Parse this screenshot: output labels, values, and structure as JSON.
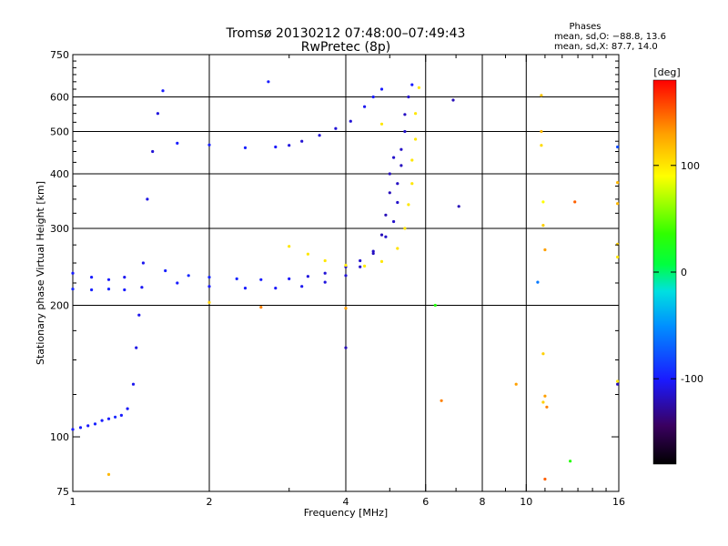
{
  "chart_data": {
    "type": "scatter",
    "title": "Tromsø 20130212 07:48:00–07:49:43",
    "subtitle": "RwPretec (8p)",
    "stats_title": "Phases",
    "stats_o": "mean, sd,O: −88.8, 13.6",
    "stats_x": "mean, sd,X:  87.7, 14.0",
    "xlabel": "Frequency [MHz]",
    "ylabel": "Stationary phase Virtual Height [km]",
    "x_scale": "log",
    "y_scale": "log",
    "xlim": [
      1,
      16
    ],
    "ylim": [
      75,
      750
    ],
    "x_major_ticks": [
      1,
      2,
      4,
      6,
      8,
      10,
      16
    ],
    "x_gridlines": [
      2,
      4,
      6,
      8,
      10
    ],
    "x_minor_ticks": [
      3,
      5,
      7,
      9,
      11,
      12,
      13,
      14,
      15
    ],
    "y_major_ticks": [
      75,
      100,
      200,
      300,
      400,
      500,
      600,
      750
    ],
    "y_gridlines": [
      200,
      300,
      400,
      500,
      600
    ],
    "y_minor_ticks": [
      125,
      150,
      175,
      225,
      250,
      275,
      325,
      350,
      375,
      425,
      450,
      475,
      525,
      550,
      575,
      625,
      650,
      675,
      700,
      725
    ],
    "grid": true,
    "colorbar": {
      "label": "[deg]",
      "range": [
        -180,
        180
      ],
      "ticks": [
        100,
        0,
        -100
      ],
      "placement": "right"
    },
    "series": [
      {
        "points": [
          [
            1.0,
            104,
            -100
          ],
          [
            1.04,
            105,
            -100
          ],
          [
            1.08,
            106,
            -102
          ],
          [
            1.12,
            107,
            -98
          ],
          [
            1.16,
            109,
            -100
          ],
          [
            1.2,
            110,
            -100
          ],
          [
            1.24,
            111,
            -96
          ],
          [
            1.28,
            112,
            -100
          ],
          [
            1.32,
            116,
            -103
          ],
          [
            1.36,
            132,
            -105
          ],
          [
            1.38,
            160,
            -108
          ],
          [
            1.4,
            190,
            -106
          ],
          [
            1.42,
            220,
            -104
          ],
          [
            1.43,
            250,
            -105
          ],
          [
            1.46,
            350,
            -108
          ],
          [
            1.5,
            450,
            -112
          ],
          [
            1.54,
            550,
            -110
          ],
          [
            1.58,
            620,
            -100
          ],
          [
            1.0,
            237,
            -100
          ],
          [
            1.1,
            232,
            -100
          ],
          [
            1.2,
            229,
            -100
          ],
          [
            1.3,
            232,
            -105
          ],
          [
            1.0,
            218,
            -95
          ],
          [
            1.1,
            217,
            -98
          ],
          [
            1.2,
            218,
            -96
          ],
          [
            1.3,
            217,
            -100
          ],
          [
            1.6,
            240,
            -98
          ],
          [
            1.8,
            234,
            -95
          ],
          [
            2.0,
            232,
            -96
          ],
          [
            2.3,
            230,
            -96
          ],
          [
            2.6,
            229,
            -100
          ],
          [
            3.0,
            230,
            -102
          ],
          [
            3.3,
            233,
            -110
          ],
          [
            3.6,
            237,
            -112
          ],
          [
            4.0,
            245,
            -115
          ],
          [
            4.3,
            253,
            -114
          ],
          [
            4.6,
            266,
            -116
          ],
          [
            4.9,
            287,
            -115
          ],
          [
            5.1,
            311,
            -115
          ],
          [
            5.2,
            344,
            -115
          ],
          [
            5.2,
            380,
            -117
          ],
          [
            5.3,
            418,
            -118
          ],
          [
            5.3,
            455,
            -116
          ],
          [
            5.4,
            500,
            -115
          ],
          [
            5.4,
            547,
            -117
          ],
          [
            5.5,
            600,
            -115
          ],
          [
            5.6,
            640,
            -100
          ],
          [
            1.7,
            225,
            -100
          ],
          [
            2.0,
            221,
            -100
          ],
          [
            2.4,
            219,
            -100
          ],
          [
            2.8,
            219,
            -102
          ],
          [
            3.2,
            221,
            -105
          ],
          [
            3.6,
            226,
            -110
          ],
          [
            4.0,
            234,
            -112
          ],
          [
            4.3,
            245,
            -115
          ],
          [
            4.6,
            263,
            -118
          ],
          [
            4.8,
            290,
            -120
          ],
          [
            4.9,
            322,
            -120
          ],
          [
            5.0,
            362,
            -120
          ],
          [
            5.0,
            400,
            -118
          ],
          [
            5.1,
            436,
            -115
          ],
          [
            1.7,
            470,
            -100
          ],
          [
            2.0,
            466,
            -98
          ],
          [
            2.4,
            459,
            -98
          ],
          [
            2.8,
            461,
            -102
          ],
          [
            3.0,
            465,
            -110
          ],
          [
            3.2,
            475,
            -113
          ],
          [
            3.5,
            490,
            -112
          ],
          [
            3.8,
            508,
            -112
          ],
          [
            4.1,
            528,
            -112
          ],
          [
            4.4,
            570,
            -105
          ],
          [
            4.6,
            600,
            -100
          ],
          [
            4.8,
            625,
            -100
          ],
          [
            3.0,
            273,
            100
          ],
          [
            3.3,
            262,
            100
          ],
          [
            3.6,
            253,
            100
          ],
          [
            4.0,
            247,
            100
          ],
          [
            4.4,
            246,
            98
          ],
          [
            4.8,
            252,
            100
          ],
          [
            5.2,
            270,
            102
          ],
          [
            5.4,
            300,
            100
          ],
          [
            5.5,
            340,
            100
          ],
          [
            5.6,
            380,
            100
          ],
          [
            5.6,
            430,
            100
          ],
          [
            5.7,
            480,
            100
          ],
          [
            5.7,
            550,
            100
          ],
          [
            5.8,
            630,
            100
          ],
          [
            4.8,
            520,
            100
          ],
          [
            10.8,
            605,
            115
          ],
          [
            10.8,
            500,
            120
          ],
          [
            10.8,
            465,
            105
          ],
          [
            10.9,
            345,
            90
          ],
          [
            10.9,
            305,
            110
          ],
          [
            11.0,
            268,
            130
          ],
          [
            10.6,
            226,
            -60
          ],
          [
            10.9,
            155,
            110
          ],
          [
            11.0,
            124,
            130
          ],
          [
            10.9,
            120,
            110
          ],
          [
            11.1,
            117,
            140
          ],
          [
            11.0,
            80,
            150
          ],
          [
            12.5,
            88,
            30
          ],
          [
            12.8,
            345,
            150
          ],
          [
            15.9,
            461,
            -80
          ],
          [
            15.9,
            382,
            120
          ],
          [
            15.9,
            342,
            120
          ],
          [
            15.9,
            276,
            110
          ],
          [
            15.9,
            258,
            100
          ],
          [
            15.9,
            134,
            100
          ],
          [
            15.9,
            132,
            -120
          ],
          [
            6.3,
            200,
            30
          ],
          [
            6.5,
            121,
            140
          ],
          [
            7.1,
            337,
            -120
          ],
          [
            6.9,
            590,
            -120
          ],
          [
            2.7,
            650,
            -100
          ],
          [
            4.0,
            160,
            -120
          ],
          [
            4.0,
            197,
            130
          ],
          [
            9.5,
            132,
            130
          ],
          [
            1.2,
            82,
            120
          ],
          [
            2.6,
            198,
            140
          ],
          [
            2.0,
            203,
            110
          ]
        ]
      }
    ]
  }
}
